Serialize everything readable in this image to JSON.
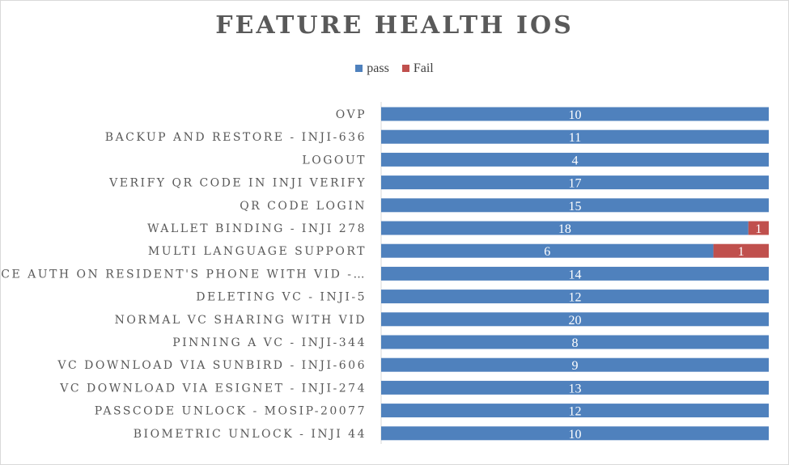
{
  "chart_data": {
    "type": "bar",
    "orientation": "horizontal",
    "stacked": true,
    "title": "FEATURE HEALTH IOS",
    "legend_position": "top",
    "categories": [
      "OVP",
      "BACKUP AND RESTORE - INJI-636",
      "LOGOUT",
      "VERIFY QR CODE IN INJI VERIFY",
      "QR CODE LOGIN",
      "WALLET BINDING - INJI 278",
      "MULTI LANGUAGE SUPPORT",
      "FACE AUTH ON RESIDENT'S PHONE WITH VID -…",
      "DELETING VC - INJI-5",
      "NORMAL VC SHARING WITH VID",
      "PINNING A VC - INJI-344",
      "VC DOWNLOAD VIA SUNBIRD - INJI-606",
      "VC DOWNLOAD VIA ESIGNET - INJI-274",
      "PASSCODE UNLOCK - MOSIP-20077",
      "BIOMETRIC UNLOCK - INJI 44"
    ],
    "series": [
      {
        "name": "pass",
        "color": "#4f81bd",
        "values": [
          10,
          11,
          4,
          17,
          15,
          18,
          6,
          14,
          12,
          20,
          8,
          9,
          13,
          12,
          10
        ]
      },
      {
        "name": "Fail",
        "color": "#c0504d",
        "values": [
          0,
          0,
          0,
          0,
          0,
          1,
          1,
          0,
          0,
          0,
          0,
          0,
          0,
          0,
          0
        ]
      }
    ],
    "normalized_100_percent": true,
    "grid": false
  }
}
